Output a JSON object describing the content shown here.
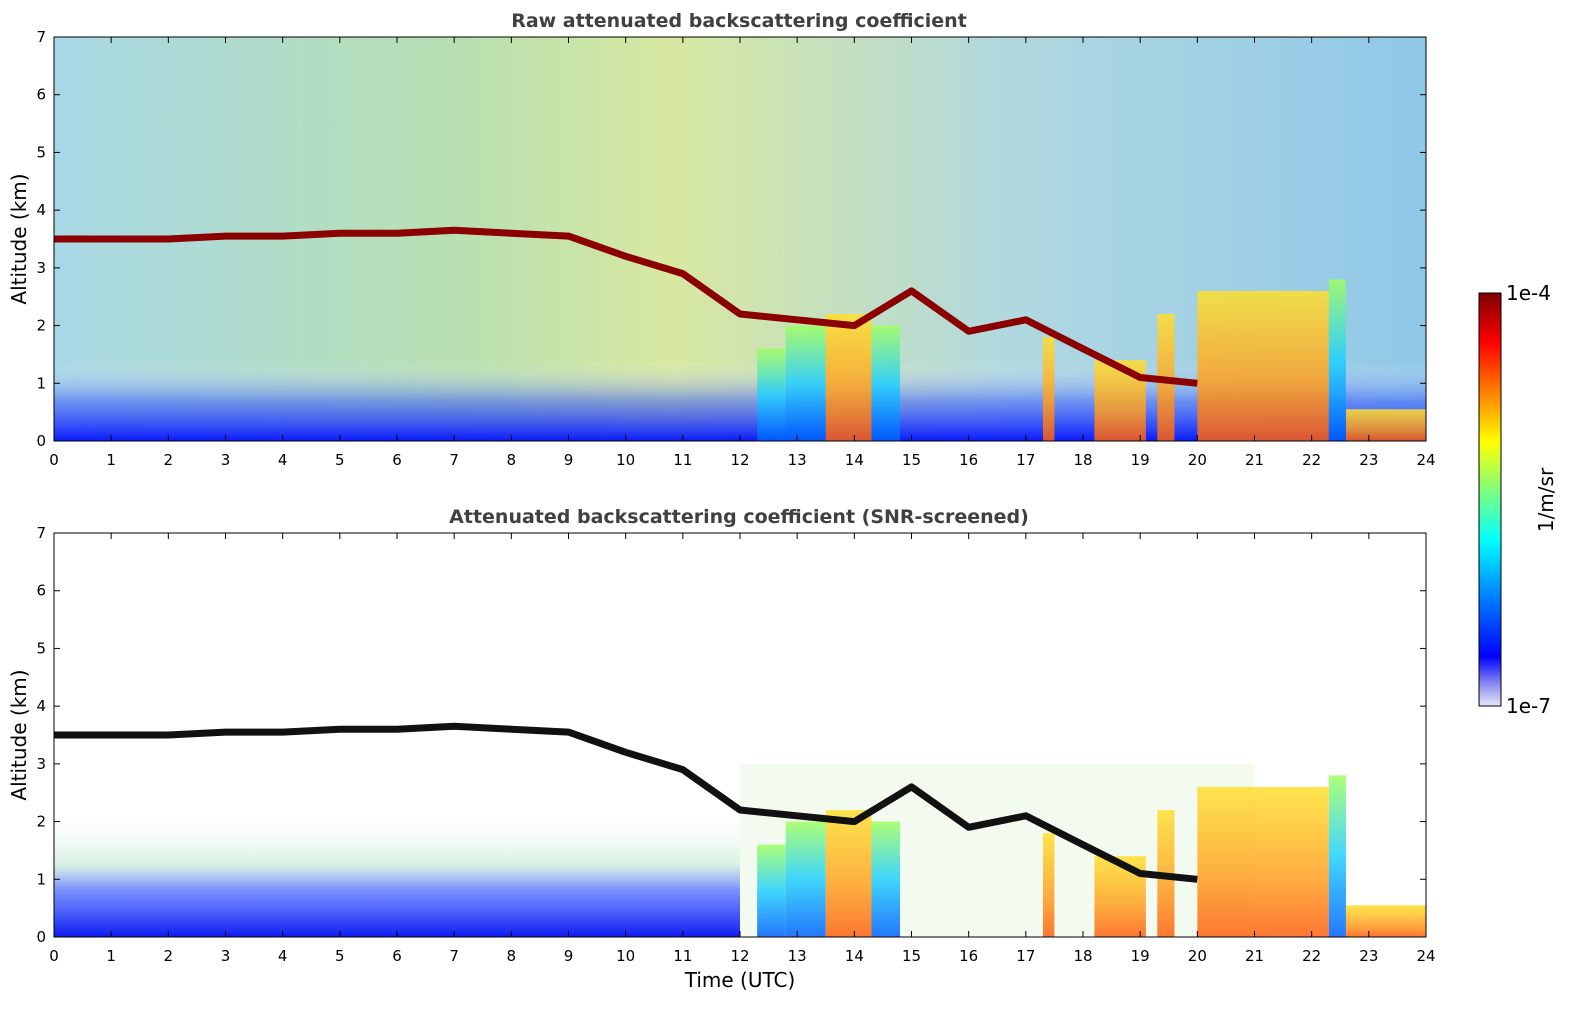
{
  "chart_data": [
    {
      "type": "heatmap",
      "title": "Raw attenuated backscattering coefficient",
      "xlabel": "",
      "ylabel": "Altitude (km)",
      "xlim": [
        0,
        24
      ],
      "ylim": [
        0,
        7
      ],
      "xticks": [
        "0",
        "1",
        "2",
        "3",
        "4",
        "5",
        "6",
        "7",
        "8",
        "9",
        "10",
        "11",
        "12",
        "13",
        "14",
        "15",
        "16",
        "17",
        "18",
        "19",
        "20",
        "21",
        "22",
        "23",
        "24"
      ],
      "yticks": [
        "0",
        "1",
        "2",
        "3",
        "4",
        "5",
        "6",
        "7"
      ],
      "cloud_layer_altitude_km": {
        "x": [
          0,
          1,
          2,
          3,
          4,
          5,
          6,
          7,
          8,
          9,
          10,
          11,
          12,
          13,
          14,
          15,
          16,
          17,
          18,
          19,
          20
        ],
        "y": [
          3.5,
          3.5,
          3.5,
          3.55,
          3.55,
          3.6,
          3.6,
          3.65,
          3.6,
          3.55,
          3.2,
          2.9,
          2.2,
          2.1,
          2.0,
          2.6,
          1.9,
          2.1,
          1.6,
          1.1,
          1.0
        ]
      },
      "grid": false
    },
    {
      "type": "heatmap",
      "title": "Attenuated backscattering coefficient (SNR-screened)",
      "xlabel": "Time (UTC)",
      "ylabel": "Altitude (km)",
      "xlim": [
        0,
        24
      ],
      "ylim": [
        0,
        7
      ],
      "xticks": [
        "0",
        "1",
        "2",
        "3",
        "4",
        "5",
        "6",
        "7",
        "8",
        "9",
        "10",
        "11",
        "12",
        "13",
        "14",
        "15",
        "16",
        "17",
        "18",
        "19",
        "20",
        "21",
        "22",
        "23",
        "24"
      ],
      "yticks": [
        "0",
        "1",
        "2",
        "3",
        "4",
        "5",
        "6",
        "7"
      ],
      "grid": false
    }
  ],
  "colorbar": {
    "label": "1/m/sr",
    "max_label": "1e-4",
    "min_label": "1e-7",
    "colors": [
      "#e6e6fa",
      "#0000ff",
      "#00a0ff",
      "#00ffff",
      "#7fff7f",
      "#ffff00",
      "#ff8000",
      "#ff0000",
      "#800000"
    ]
  }
}
